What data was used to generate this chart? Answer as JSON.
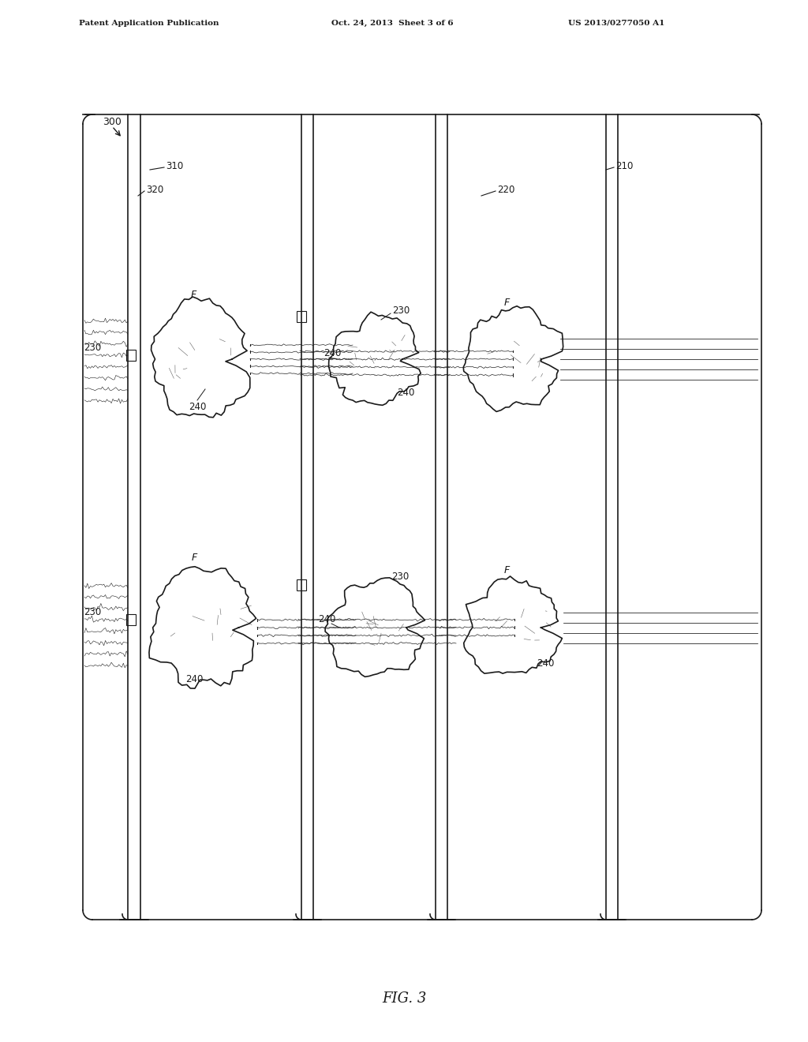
{
  "title": "FIG. 3",
  "patent_header_left": "Patent Application Publication",
  "patent_header_mid": "Oct. 24, 2013  Sheet 3 of 6",
  "patent_header_right": "US 2013/0277050 A1",
  "fig_label": "FIG. 3",
  "ref_300": "300",
  "ref_310": "310",
  "ref_320": "320",
  "ref_210": "210",
  "ref_220": "220",
  "ref_230": "230",
  "ref_240": "240",
  "ref_F": "F",
  "bg_color": "#ffffff",
  "line_color": "#1a1a1a",
  "label_color": "#1a1a1a"
}
